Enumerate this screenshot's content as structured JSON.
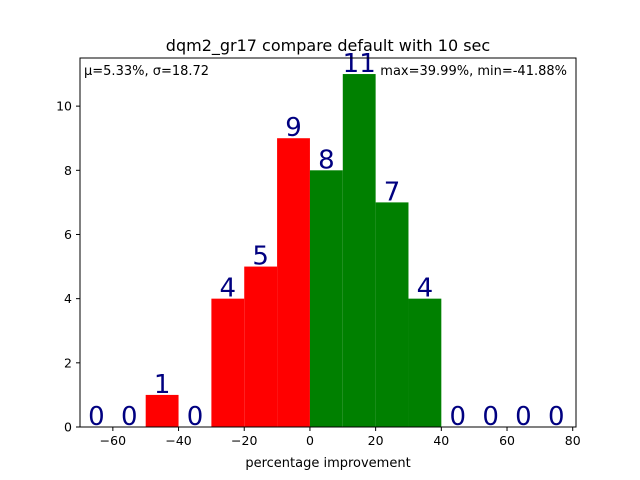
{
  "chart_data": {
    "type": "bar",
    "title": "dqm2_gr17 compare default with 10 sec",
    "xlabel": "percentage improvement",
    "ylabel": "",
    "xlim": [
      -70,
      81
    ],
    "ylim": [
      0,
      11.5
    ],
    "xticks": [
      -60,
      -40,
      -20,
      0,
      20,
      40,
      60,
      80
    ],
    "yticks": [
      0,
      2,
      4,
      6,
      8,
      10
    ],
    "bin_width": 10,
    "bins": [
      {
        "x0": -70,
        "x1": -60,
        "value": 0,
        "label": "0"
      },
      {
        "x0": -60,
        "x1": -50,
        "value": 0,
        "label": "0"
      },
      {
        "x0": -50,
        "x1": -40,
        "value": 1,
        "label": "1"
      },
      {
        "x0": -40,
        "x1": -30,
        "value": 0,
        "label": "0"
      },
      {
        "x0": -30,
        "x1": -20,
        "value": 4,
        "label": "4"
      },
      {
        "x0": -20,
        "x1": -10,
        "value": 5,
        "label": "5"
      },
      {
        "x0": -10,
        "x1": 0,
        "value": 9,
        "label": "9"
      },
      {
        "x0": 0,
        "x1": 10,
        "value": 8,
        "label": "8"
      },
      {
        "x0": 10,
        "x1": 20,
        "value": 11,
        "label": "11"
      },
      {
        "x0": 20,
        "x1": 30,
        "value": 7,
        "label": "7"
      },
      {
        "x0": 30,
        "x1": 40,
        "value": 4,
        "label": "4"
      },
      {
        "x0": 40,
        "x1": 50,
        "value": 0,
        "label": "0"
      },
      {
        "x0": 50,
        "x1": 60,
        "value": 0,
        "label": "0"
      },
      {
        "x0": 60,
        "x1": 70,
        "value": 0,
        "label": "0"
      },
      {
        "x0": 70,
        "x1": 80,
        "value": 0,
        "label": "0"
      }
    ],
    "colors": {
      "negative": "#ff0000",
      "positive": "#008000",
      "count_label": "#000080"
    },
    "annotations": {
      "left": "μ=5.33%, σ=18.72",
      "right": "max=39.99%, min=-41.88%"
    },
    "grid": false,
    "legend": "none"
  }
}
